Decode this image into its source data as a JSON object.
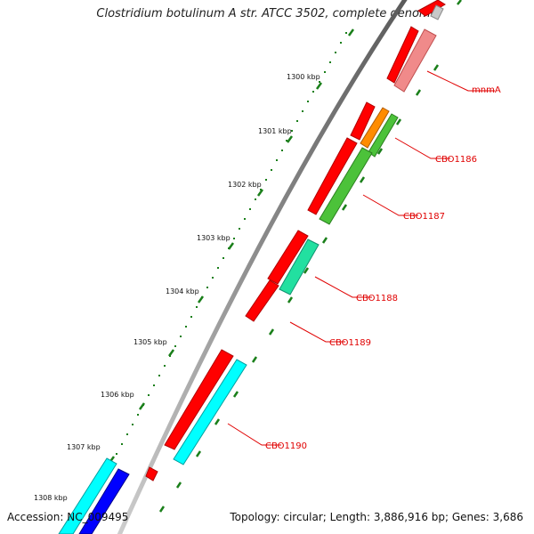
{
  "title": "Clostridium botulinum A str. ATCC 3502, complete genome",
  "footer": {
    "accession": "Accession: NC_009495",
    "summary": "Topology: circular; Length: 3,886,916 bp; Genes: 3,686"
  },
  "ruler_labels": [
    "1300 kbp",
    "1301 kbp",
    "1302 kbp",
    "1303 kbp",
    "1304 kbp",
    "1305 kbp",
    "1306 kbp",
    "1307 kbp",
    "1308 kbp"
  ],
  "gene_labels": [
    "mnmA",
    "CBO1186",
    "CBO1187",
    "CBO1188",
    "CBO1189",
    "CBO1190"
  ],
  "colors": {
    "backbone": "#8a8a8a",
    "tick_green": "#1a7f1a",
    "cds_forward": "#ff0000",
    "label_red": "#e00000",
    "mnmA": "#f08a8a",
    "CBO1186": "#ff8c00",
    "CBO1187": "#4cc23a",
    "CBO1188": "#22e0a0",
    "CBO1190": "#00ffff",
    "blue_feature": "#0000ff"
  }
}
